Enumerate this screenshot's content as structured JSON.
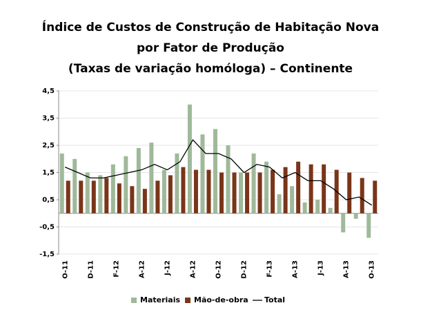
{
  "chart_data": {
    "type": "bar-line",
    "title": [
      "Índice de Custos de Construção de Habitação Nova",
      "por Fator de Produção",
      "(Taxas de variação homóloga) – Continente"
    ],
    "categories": [
      "O-11",
      null,
      "D-11",
      null,
      "F-12",
      null,
      "A-12",
      null,
      "J-12",
      null,
      "A-12",
      null,
      "O-12",
      null,
      "D-12",
      null,
      "F-13",
      null,
      "A-13",
      null,
      "J-13",
      null,
      "A-13",
      null,
      "O-13"
    ],
    "series": [
      {
        "name": "Materiais",
        "color": "#9fb99a",
        "kind": "bar",
        "values": [
          2.2,
          2.0,
          1.5,
          1.4,
          1.8,
          2.1,
          2.4,
          2.6,
          1.6,
          2.2,
          4.0,
          2.9,
          3.1,
          2.5,
          1.5,
          2.2,
          1.9,
          0.7,
          1.0,
          0.4,
          0.5,
          0.2,
          -0.7,
          -0.2,
          -0.9
        ]
      },
      {
        "name": "Mão-de-obra",
        "color": "#7a3519",
        "kind": "bar",
        "values": [
          1.2,
          1.2,
          1.2,
          1.3,
          1.1,
          1.0,
          0.9,
          1.2,
          1.4,
          1.7,
          1.6,
          1.6,
          1.5,
          1.5,
          1.5,
          1.5,
          1.6,
          1.7,
          1.9,
          1.8,
          1.8,
          1.6,
          1.5,
          1.3,
          1.2
        ]
      },
      {
        "name": "Total",
        "color": "#000000",
        "kind": "line",
        "values": [
          1.7,
          1.5,
          1.3,
          1.3,
          1.4,
          1.5,
          1.6,
          1.8,
          1.6,
          1.9,
          2.7,
          2.2,
          2.2,
          2.0,
          1.5,
          1.8,
          1.7,
          1.3,
          1.5,
          1.2,
          1.2,
          0.9,
          0.5,
          0.6,
          0.3
        ]
      }
    ],
    "ylim": [
      -1.5,
      4.5
    ],
    "yticks": [
      {
        "value": -1.5,
        "label": "-1,5"
      },
      {
        "value": -0.5,
        "label": "-0,5"
      },
      {
        "value": 0.5,
        "label": "0,5"
      },
      {
        "value": 1.5,
        "label": "1,5"
      },
      {
        "value": 2.5,
        "label": "2,5"
      },
      {
        "value": 3.5,
        "label": "3,5"
      },
      {
        "value": 4.5,
        "label": "4,5"
      }
    ],
    "grid": true
  }
}
